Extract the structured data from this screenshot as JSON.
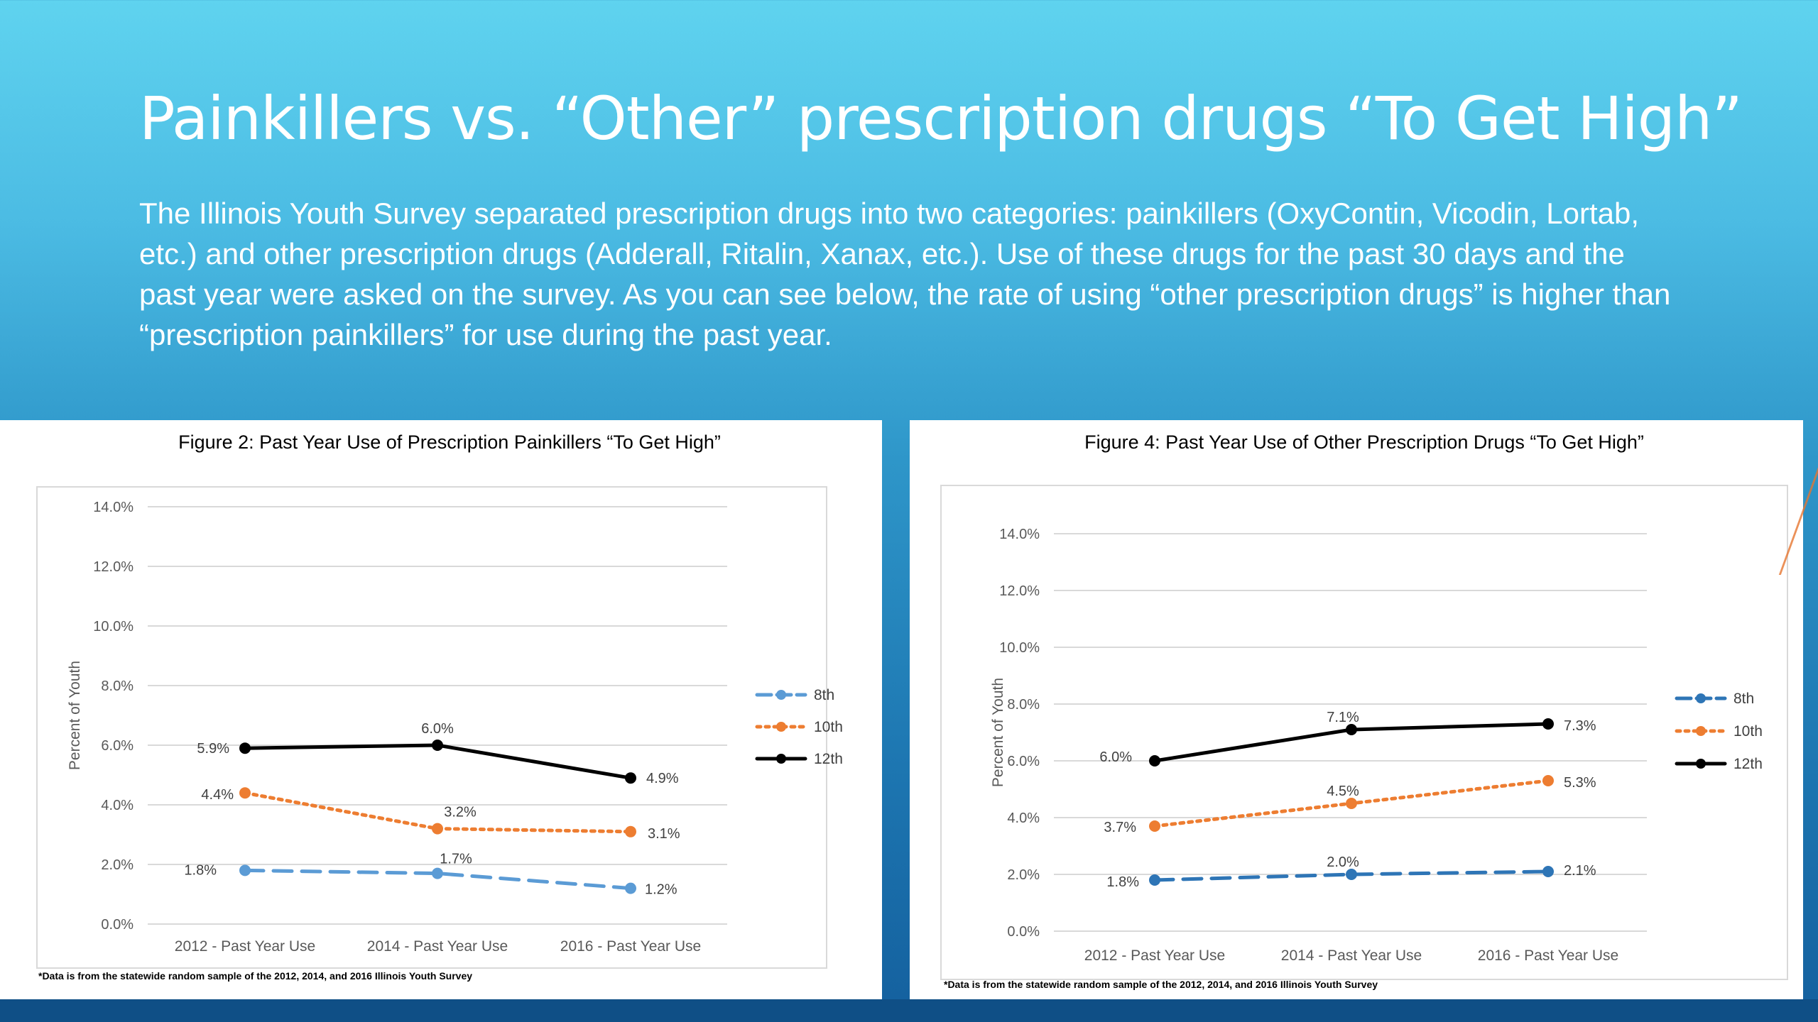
{
  "slide": {
    "title": "Painkillers vs. “Other” prescription drugs “To Get High”",
    "body": "The Illinois Youth Survey separated prescription drugs into two categories: painkillers (OxyContin, Vicodin, Lortab, etc.) and other prescription drugs (Adderall, Ritalin, Xanax, etc.). Use of these drugs for the past 30 days and the past year were asked on the survey. As you can see below, the rate of using “other prescription drugs” is higher than “prescription painkillers” for use during the past year."
  },
  "chart_data": [
    {
      "type": "line",
      "title": "Figure 2: Past Year Use of Prescription Painkillers “To Get High”",
      "ylabel": "Percent of Youth",
      "xlabel": "",
      "categories": [
        "2012 - Past Year Use",
        "2014 - Past Year Use",
        "2016 - Past Year Use"
      ],
      "yticks": [
        "0.0%",
        "2.0%",
        "4.0%",
        "6.0%",
        "8.0%",
        "10.0%",
        "12.0%",
        "14.0%"
      ],
      "ylim": [
        0,
        14
      ],
      "grid": true,
      "legend_position": "right",
      "footnote": "*Data is from the statewide random sample of the 2012, 2014, and 2016 Illinois Youth Survey",
      "series": [
        {
          "name": "8th",
          "values": [
            1.8,
            1.7,
            1.2
          ],
          "labels": [
            "1.8%",
            "1.7%",
            "1.2%"
          ],
          "color": "#5b9bd5",
          "style": "dashed"
        },
        {
          "name": "10th",
          "values": [
            4.4,
            3.2,
            3.1
          ],
          "labels": [
            "4.4%",
            "3.2%",
            "3.1%"
          ],
          "color": "#ed7d31",
          "style": "dotted"
        },
        {
          "name": "12th",
          "values": [
            5.9,
            6.0,
            4.9
          ],
          "labels": [
            "5.9%",
            "6.0%",
            "4.9%"
          ],
          "color": "#000000",
          "style": "solid"
        }
      ]
    },
    {
      "type": "line",
      "title": "Figure 4: Past Year Use of Other Prescription Drugs “To Get High”",
      "ylabel": "Percent of Youth",
      "xlabel": "",
      "categories": [
        "2012 - Past Year Use",
        "2014 - Past Year Use",
        "2016 - Past Year Use"
      ],
      "yticks": [
        "0.0%",
        "2.0%",
        "4.0%",
        "6.0%",
        "8.0%",
        "10.0%",
        "12.0%",
        "14.0%"
      ],
      "ylim": [
        0,
        14
      ],
      "grid": true,
      "legend_position": "right",
      "footnote": "*Data is from the statewide random sample of the 2012, 2014, and 2016 Illinois Youth Survey",
      "series": [
        {
          "name": "8th",
          "values": [
            1.8,
            2.0,
            2.1
          ],
          "labels": [
            "1.8%",
            "2.0%",
            "2.1%"
          ],
          "color": "#2e75b6",
          "style": "dashed"
        },
        {
          "name": "10th",
          "values": [
            3.7,
            4.5,
            5.3
          ],
          "labels": [
            "3.7%",
            "4.5%",
            "5.3%"
          ],
          "color": "#ed7d31",
          "style": "dotted"
        },
        {
          "name": "12th",
          "values": [
            6.0,
            7.1,
            7.3
          ],
          "labels": [
            "6.0%",
            "7.1%",
            "7.3%"
          ],
          "color": "#000000",
          "style": "solid"
        }
      ]
    }
  ]
}
